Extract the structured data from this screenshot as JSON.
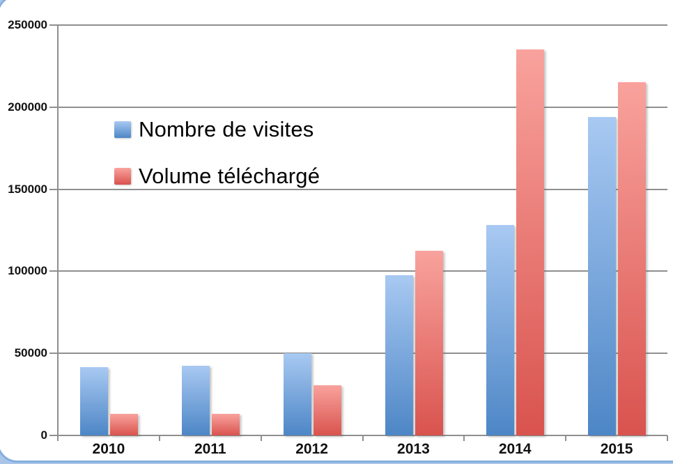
{
  "window": {
    "frame_border_color": "#85aedd",
    "frame_outside_color": "#a9c6e8",
    "canvas_background": "#ffffff"
  },
  "axis": {
    "line_color": "#8f8f8f",
    "text_color": "#111111"
  },
  "legend": {
    "items": [
      {
        "label": "Nombre de visites",
        "swatch_name": "blue-square-swatch"
      },
      {
        "label": "Volume téléchargé",
        "swatch_name": "red-square-swatch"
      }
    ]
  },
  "chart_data": {
    "type": "bar",
    "title": "",
    "xlabel": "",
    "ylabel": "",
    "categories": [
      "2010",
      "2011",
      "2012",
      "2013",
      "2014",
      "2015"
    ],
    "series": [
      {
        "name": "Nombre de visites",
        "color_top": "#a8c9f2",
        "color_bottom": "#4d86c6",
        "values": [
          41500,
          42500,
          50000,
          97500,
          128000,
          194000
        ]
      },
      {
        "name": "Volume téléchargé",
        "color_top": "#f9a29d",
        "color_bottom": "#d9534e",
        "values": [
          13000,
          13000,
          30500,
          112500,
          235000,
          215000
        ]
      }
    ],
    "ylim": [
      0,
      250000
    ],
    "ytick_step": 50000,
    "ytick_labels": [
      "0",
      "50000",
      "100000",
      "150000",
      "200000",
      "250000"
    ],
    "grid": true,
    "legend_position": "upper-left-inside"
  }
}
